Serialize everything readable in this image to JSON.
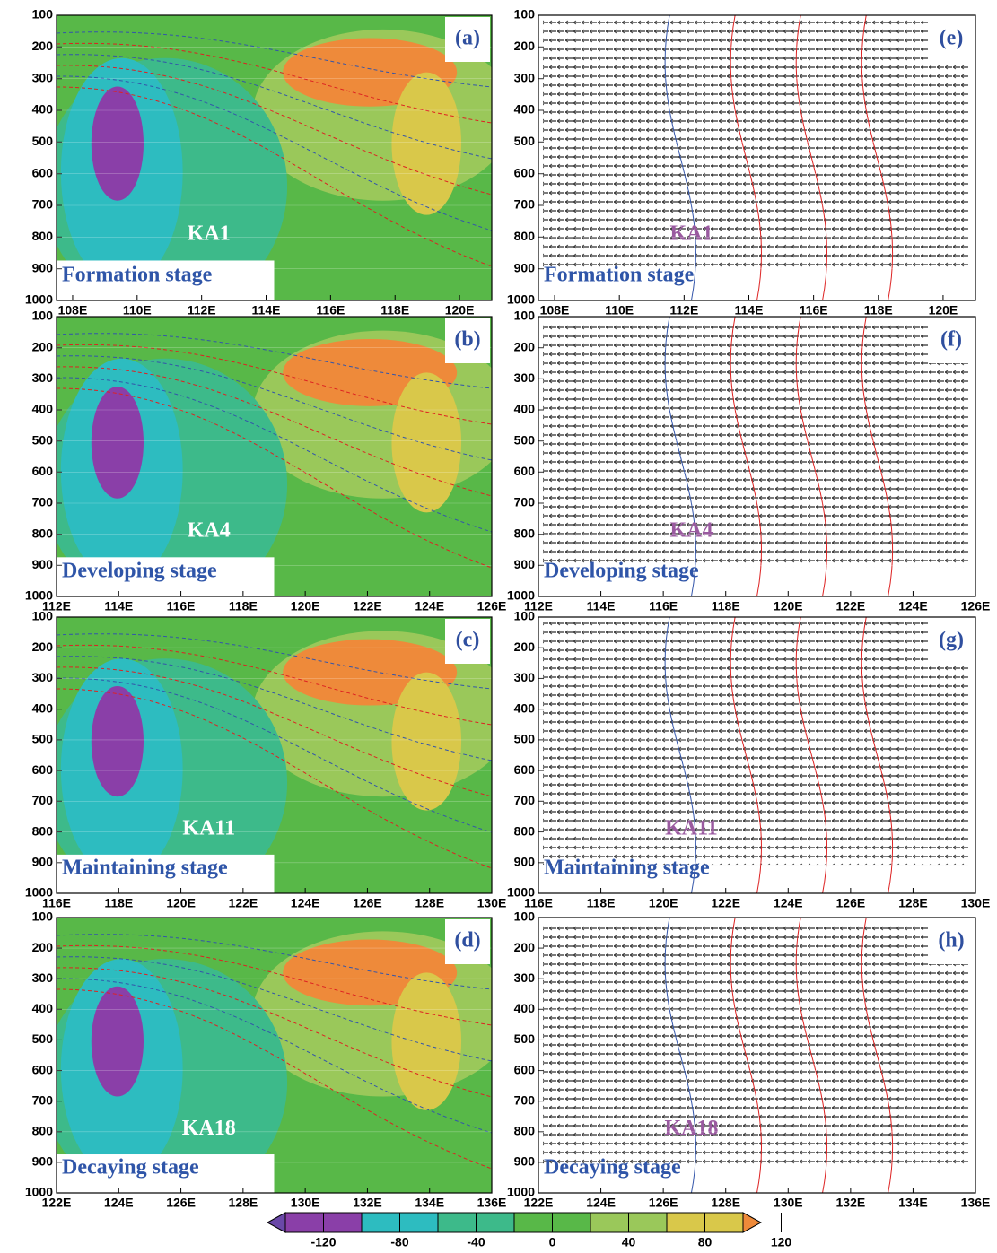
{
  "chart_data": [
    {
      "type": "shaded",
      "panel_label": "(a)",
      "annotation": "KA1",
      "stage": "Formation stage",
      "xlim": [
        107.5,
        121
      ],
      "xticks": [
        {
          "value": 108,
          "label": "108E"
        },
        {
          "value": 110,
          "label": "110E"
        },
        {
          "value": 112,
          "label": "112E"
        },
        {
          "value": 114,
          "label": "114E"
        },
        {
          "value": 116,
          "label": "116E"
        },
        {
          "value": 118,
          "label": "118E"
        },
        {
          "value": 120,
          "label": "120E"
        }
      ],
      "ylim": [
        1000,
        100
      ],
      "yticks": [
        100,
        200,
        300,
        400,
        500,
        600,
        700,
        800,
        900,
        1000
      ]
    },
    {
      "type": "vector",
      "panel_label": "(e)",
      "annotation": "KA1",
      "stage": "Formation stage",
      "xlim": [
        107.5,
        121
      ],
      "xticks": [
        {
          "value": 108,
          "label": "108E"
        },
        {
          "value": 110,
          "label": "110E"
        },
        {
          "value": 112,
          "label": "112E"
        },
        {
          "value": 114,
          "label": "114E"
        },
        {
          "value": 116,
          "label": "116E"
        },
        {
          "value": 118,
          "label": "118E"
        },
        {
          "value": 120,
          "label": "120E"
        }
      ],
      "ylim": [
        1000,
        100
      ],
      "yticks": [
        100,
        200,
        300,
        400,
        500,
        600,
        700,
        800,
        900,
        1000
      ]
    },
    {
      "type": "shaded",
      "panel_label": "(b)",
      "annotation": "KA4",
      "stage": "Developing stage",
      "xlim": [
        112,
        126
      ],
      "xticks": [
        {
          "value": 112,
          "label": "112E"
        },
        {
          "value": 114,
          "label": "114E"
        },
        {
          "value": 116,
          "label": "116E"
        },
        {
          "value": 118,
          "label": "118E"
        },
        {
          "value": 120,
          "label": "120E"
        },
        {
          "value": 122,
          "label": "122E"
        },
        {
          "value": 124,
          "label": "124E"
        },
        {
          "value": 126,
          "label": "126E"
        }
      ],
      "ylim": [
        1000,
        100
      ],
      "yticks": [
        100,
        200,
        300,
        400,
        500,
        600,
        700,
        800,
        900,
        1000
      ]
    },
    {
      "type": "vector",
      "panel_label": "(f)",
      "annotation": "KA4",
      "stage": "Developing stage",
      "xlim": [
        112,
        126
      ],
      "xticks": [
        {
          "value": 112,
          "label": "112E"
        },
        {
          "value": 114,
          "label": "114E"
        },
        {
          "value": 116,
          "label": "116E"
        },
        {
          "value": 118,
          "label": "118E"
        },
        {
          "value": 120,
          "label": "120E"
        },
        {
          "value": 122,
          "label": "122E"
        },
        {
          "value": 124,
          "label": "124E"
        },
        {
          "value": 126,
          "label": "126E"
        }
      ],
      "ylim": [
        1000,
        100
      ],
      "yticks": [
        100,
        200,
        300,
        400,
        500,
        600,
        700,
        800,
        900,
        1000
      ]
    },
    {
      "type": "shaded",
      "panel_label": "(c)",
      "annotation": "KA11",
      "stage": "Maintaining stage",
      "xlim": [
        116,
        130
      ],
      "xticks": [
        {
          "value": 116,
          "label": "116E"
        },
        {
          "value": 118,
          "label": "118E"
        },
        {
          "value": 120,
          "label": "120E"
        },
        {
          "value": 122,
          "label": "122E"
        },
        {
          "value": 124,
          "label": "124E"
        },
        {
          "value": 126,
          "label": "126E"
        },
        {
          "value": 128,
          "label": "128E"
        },
        {
          "value": 130,
          "label": "130E"
        }
      ],
      "ylim": [
        1000,
        100
      ],
      "yticks": [
        100,
        200,
        300,
        400,
        500,
        600,
        700,
        800,
        900,
        1000
      ]
    },
    {
      "type": "vector",
      "panel_label": "(g)",
      "annotation": "KA11",
      "stage": "Maintaining stage",
      "xlim": [
        116,
        130
      ],
      "xticks": [
        {
          "value": 116,
          "label": "116E"
        },
        {
          "value": 118,
          "label": "118E"
        },
        {
          "value": 120,
          "label": "120E"
        },
        {
          "value": 122,
          "label": "122E"
        },
        {
          "value": 124,
          "label": "124E"
        },
        {
          "value": 126,
          "label": "126E"
        },
        {
          "value": 128,
          "label": "128E"
        },
        {
          "value": 130,
          "label": "130E"
        }
      ],
      "ylim": [
        1000,
        100
      ],
      "yticks": [
        100,
        200,
        300,
        400,
        500,
        600,
        700,
        800,
        900,
        1000
      ]
    },
    {
      "type": "shaded",
      "panel_label": "(d)",
      "annotation": "KA18",
      "stage": "Decaying stage",
      "xlim": [
        122,
        136
      ],
      "xticks": [
        {
          "value": 122,
          "label": "122E"
        },
        {
          "value": 124,
          "label": "124E"
        },
        {
          "value": 126,
          "label": "126E"
        },
        {
          "value": 128,
          "label": "128E"
        },
        {
          "value": 130,
          "label": "130E"
        },
        {
          "value": 132,
          "label": "132E"
        },
        {
          "value": 134,
          "label": "134E"
        },
        {
          "value": 136,
          "label": "136E"
        }
      ],
      "ylim": [
        1000,
        100
      ],
      "yticks": [
        100,
        200,
        300,
        400,
        500,
        600,
        700,
        800,
        900,
        1000
      ]
    },
    {
      "type": "vector",
      "panel_label": "(h)",
      "annotation": "KA18",
      "stage": "Decaying stage",
      "xlim": [
        122,
        136
      ],
      "xticks": [
        {
          "value": 122,
          "label": "122E"
        },
        {
          "value": 124,
          "label": "124E"
        },
        {
          "value": 126,
          "label": "126E"
        },
        {
          "value": 128,
          "label": "128E"
        },
        {
          "value": 130,
          "label": "130E"
        },
        {
          "value": 132,
          "label": "132E"
        },
        {
          "value": 134,
          "label": "134E"
        },
        {
          "value": 136,
          "label": "136E"
        }
      ],
      "ylim": [
        1000,
        100
      ],
      "yticks": [
        100,
        200,
        300,
        400,
        500,
        600,
        700,
        800,
        900,
        1000
      ]
    },
    {
      "type": "colorbar",
      "ticks": [
        -120,
        -80,
        -40,
        0,
        40,
        80,
        120
      ],
      "colors": [
        "#6a48a8",
        "#8a3fa8",
        "#2dbcc0",
        "#3dba8a",
        "#58b848",
        "#9ac85a",
        "#d9c84a",
        "#ee8a3a"
      ]
    }
  ]
}
